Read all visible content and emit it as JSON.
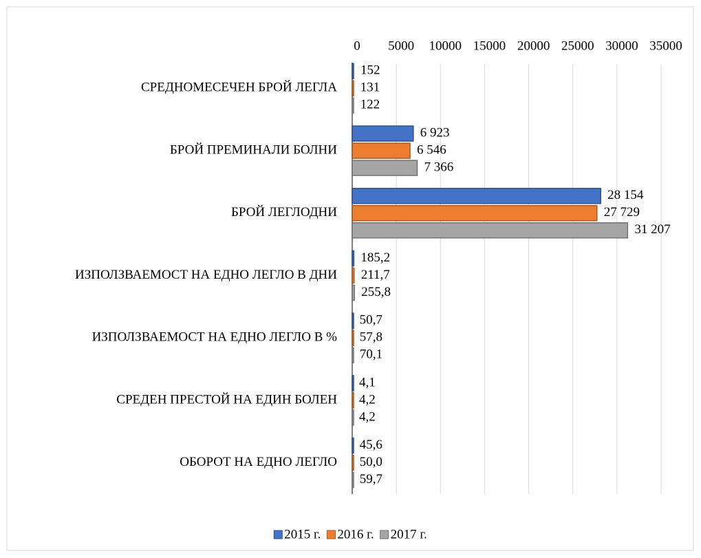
{
  "chart_data": {
    "type": "bar",
    "orientation": "horizontal",
    "categories": [
      "СРЕДНОМЕСЕЧЕН БРОЙ ЛЕГЛА",
      "БРОЙ ПРЕМИНАЛИ БОЛНИ",
      "БРОЙ ЛЕГЛОДНИ",
      "ИЗПОЛЗВАЕМОСТ НА ЕДНО ЛЕГЛО В ДНИ",
      "ИЗПОЛЗВАЕМОСТ НА ЕДНО ЛЕГЛО В %",
      "СРЕДЕН ПРЕСТОЙ НА ЕДИН БОЛЕН",
      "ОБОРОТ НА ЕДНО ЛЕГЛО"
    ],
    "series": [
      {
        "name": "2015 г.",
        "color": "#4472c4",
        "values": [
          152,
          6923,
          28154,
          185.2,
          50.7,
          4.1,
          45.6
        ],
        "value_labels": [
          "152",
          "6 923",
          "28 154",
          "185,2",
          "50,7",
          "4,1",
          "45,6"
        ]
      },
      {
        "name": "2016 г.",
        "color": "#ed7d31",
        "values": [
          131,
          6546,
          27729,
          211.7,
          57.8,
          4.2,
          50.0
        ],
        "value_labels": [
          "131",
          "6 546",
          "27 729",
          "211,7",
          "57,8",
          "4,2",
          "50,0"
        ]
      },
      {
        "name": "2017 г.",
        "color": "#a5a5a5",
        "values": [
          122,
          7366,
          31207,
          255.8,
          70.1,
          4.2,
          59.7
        ],
        "value_labels": [
          "122",
          "7 366",
          "31 207",
          "255,8",
          "70,1",
          "4,2",
          "59,7"
        ]
      }
    ],
    "xlim": [
      0,
      35000
    ],
    "xticks": [
      0,
      5000,
      10000,
      15000,
      20000,
      25000,
      30000,
      35000
    ],
    "grid": true,
    "legend": "bottom"
  }
}
